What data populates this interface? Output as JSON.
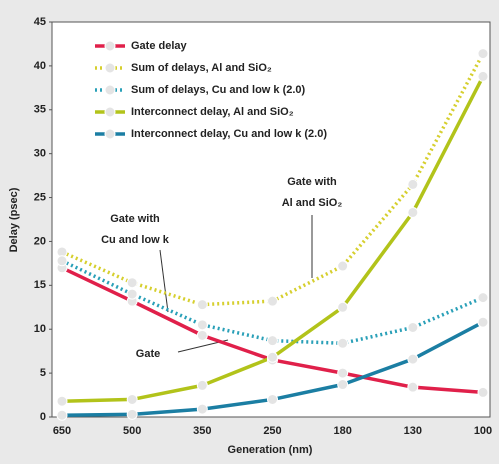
{
  "chart_data": {
    "type": "line",
    "xlabel": "Generation (nm)",
    "ylabel": "Delay (psec)",
    "categories": [
      650,
      500,
      350,
      250,
      180,
      130,
      100
    ],
    "ylim": [
      0,
      45
    ],
    "yticks": [
      0,
      5,
      10,
      15,
      20,
      25,
      30,
      35,
      40,
      45
    ],
    "series": [
      {
        "name": "Gate delay",
        "color": "#e0204a",
        "dash": false,
        "values": [
          17,
          13.2,
          9.3,
          6.5,
          5,
          3.4,
          2.8
        ]
      },
      {
        "name": "Sum of delays, Al and SiO₂",
        "color": "#d6cf2e",
        "dash": true,
        "values": [
          18.8,
          15.3,
          12.8,
          13.2,
          17.2,
          26.5,
          41.4
        ]
      },
      {
        "name": "Sum of delays, Cu and low k (2.0)",
        "color": "#2aa0b8",
        "dash": true,
        "values": [
          17.8,
          14,
          10.5,
          8.7,
          8.4,
          10.2,
          13.6
        ]
      },
      {
        "name": "Interconnect delay, Al and SiO₂",
        "color": "#b2c31a",
        "dash": false,
        "values": [
          1.8,
          2,
          3.6,
          6.8,
          12.5,
          23.3,
          38.8
        ]
      },
      {
        "name": "Interconnect delay, Cu and low k (2.0)",
        "color": "#1b7ea3",
        "dash": false,
        "values": [
          0.2,
          0.3,
          0.9,
          2,
          3.7,
          6.6,
          10.8
        ]
      }
    ],
    "annotations": [
      "Gate with",
      "Al and SiO₂",
      "Gate with",
      "Cu and low k",
      "Gate"
    ]
  }
}
